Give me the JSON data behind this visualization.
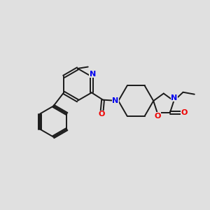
{
  "background_color": "#e0e0e0",
  "bond_color": "#1a1a1a",
  "nitrogen_color": "#0000ee",
  "oxygen_color": "#ee0000",
  "line_width": 1.4,
  "figsize": [
    3.0,
    3.0
  ],
  "dpi": 100,
  "xlim": [
    0,
    10
  ],
  "ylim": [
    0,
    10
  ]
}
